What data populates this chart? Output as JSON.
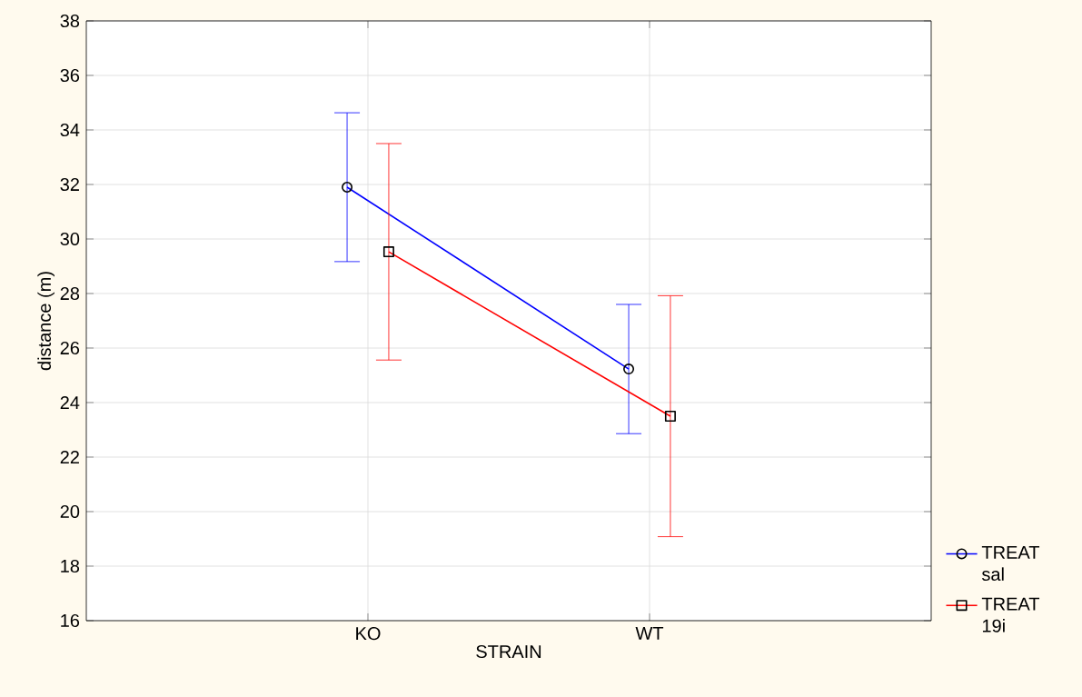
{
  "chart_data": {
    "type": "line",
    "xlabel": "STRAIN",
    "ylabel": "distance (m)",
    "categories": [
      "KO",
      "WT"
    ],
    "series": [
      {
        "name": "TREAT sal",
        "color": "#0000ff",
        "marker": "circle",
        "values": [
          31.9,
          25.23
        ],
        "errors": [
          2.73,
          2.37
        ]
      },
      {
        "name": "TREAT 19i",
        "color": "#ff0000",
        "marker": "square",
        "values": [
          29.53,
          23.5
        ],
        "errors": [
          3.97,
          4.42
        ]
      }
    ],
    "ylim": [
      16,
      38
    ],
    "yticks": [
      16,
      18,
      20,
      22,
      24,
      26,
      28,
      30,
      32,
      34,
      36,
      38
    ],
    "grid": true,
    "legend": "bottom right"
  }
}
